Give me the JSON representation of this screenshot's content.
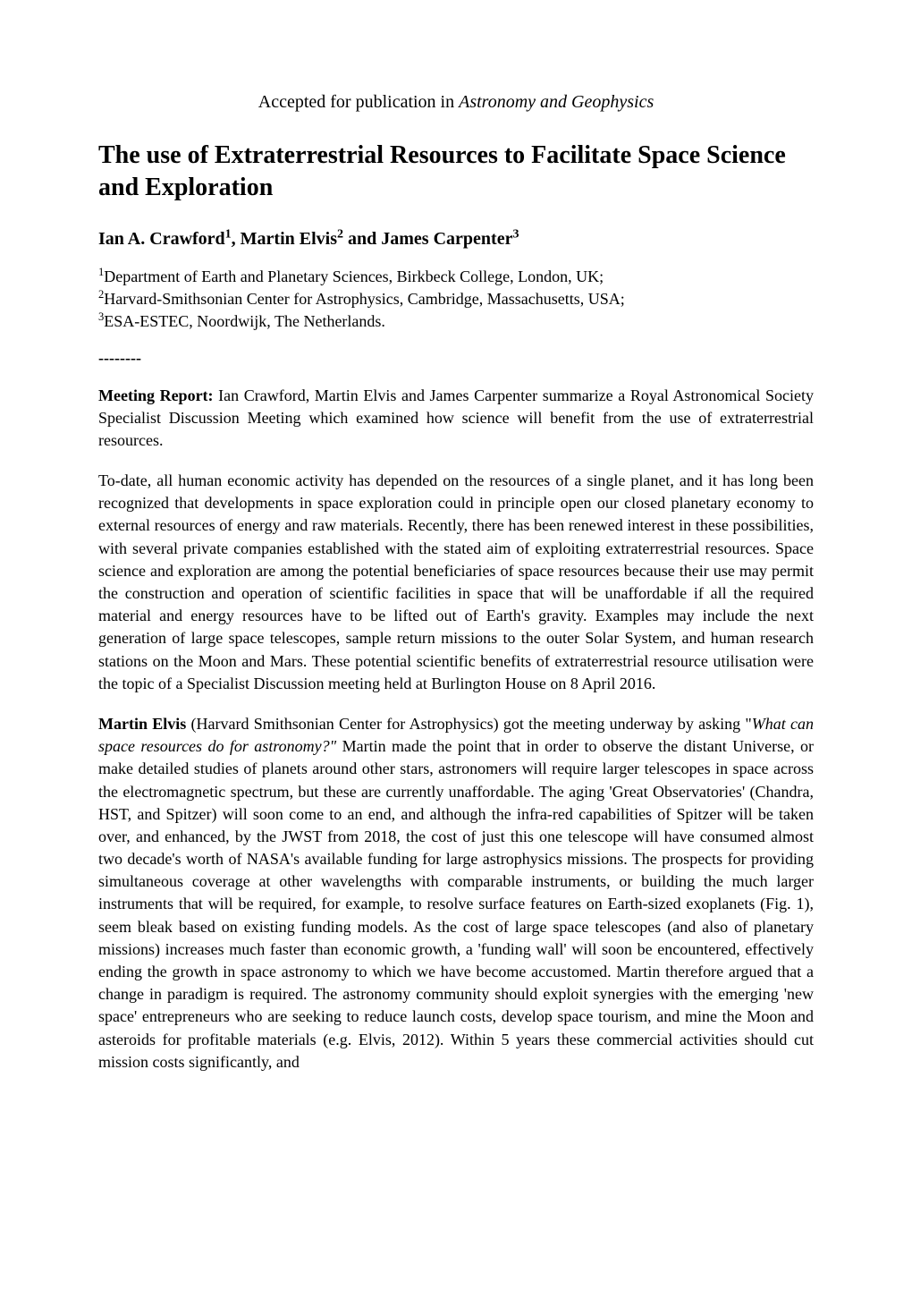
{
  "pub_note_prefix": "Accepted for publication in ",
  "pub_note_journal": "Astronomy and Geophysics",
  "title": "The use of Extraterrestrial Resources to Facilitate Space Science and Exploration",
  "authors_prefix_1": "Ian A. Crawford",
  "authors_sup_1": "1",
  "authors_sep_1": ", ",
  "authors_prefix_2": "Martin Elvis",
  "authors_sup_2": "2",
  "authors_sep_2": " and ",
  "authors_prefix_3": "James Carpenter",
  "authors_sup_3": "3",
  "aff1_sup": "1",
  "aff1_text": "Department of Earth and Planetary Sciences, Birkbeck College, London, UK;",
  "aff2_sup": "2",
  "aff2_text": "Harvard-Smithsonian Center for Astrophysics, Cambridge, Massachusetts, USA;",
  "aff3_sup": "3",
  "aff3_text": "ESA-ESTEC, Noordwijk, The Netherlands.",
  "separator": "--------",
  "report_label": "Meeting Report:",
  "report_text": " Ian Crawford, Martin Elvis and James Carpenter summarize a Royal Astronomical Society Specialist Discussion Meeting which examined how science will benefit from the use of extraterrestrial resources.",
  "intro_para": "To-date, all human economic activity has depended on the resources of a single planet, and it has long been recognized that developments in space exploration could in principle open our closed planetary economy to external resources of energy and raw materials. Recently, there has been renewed interest in these possibilities, with several private companies established with the stated aim of exploiting extraterrestrial resources. Space science and exploration are among the potential beneficiaries of space resources because their use may permit the construction and operation of scientific facilities in space that will be unaffordable if all the required material and energy resources have to be lifted out of Earth's gravity. Examples may include the next generation of large space telescopes, sample return missions to the outer Solar System, and human research stations on the Moon and Mars. These potential scientific benefits of extraterrestrial resource utilisation were the topic of a Specialist Discussion meeting held at Burlington House on 8 April 2016.",
  "elvis_name": "Martin Elvis",
  "elvis_affil": " (Harvard Smithsonian Center for Astrophysics) got the meeting underway by asking \"",
  "elvis_question": "What can space resources do for astronomy?\"",
  "elvis_rest": " Martin made the point that in order to observe the distant Universe, or make detailed studies of planets around other stars, astronomers will require larger telescopes in space across the electromagnetic spectrum, but these are currently unaffordable. The aging 'Great Observatories' (Chandra, HST, and Spitzer) will soon come to an end, and although the infra-red capabilities of Spitzer will be taken over, and enhanced, by the JWST from 2018, the cost of just this one telescope will have consumed almost two decade's worth of NASA's available funding for large astrophysics missions. The prospects for providing simultaneous coverage at other wavelengths with comparable instruments, or building the much larger instruments that will be required, for example, to resolve surface features on Earth-sized exoplanets (Fig. 1), seem bleak based on existing funding models. As the cost of large space telescopes (and also of planetary missions) increases much faster than economic growth, a 'funding wall' will soon be encountered, effectively ending the growth in space astronomy to which we have become accustomed. Martin therefore argued that a change in paradigm is required. The astronomy community should exploit synergies with the emerging 'new space' entrepreneurs who are seeking to reduce launch costs, develop space tourism, and mine the Moon and asteroids for profitable materials (e.g. Elvis, 2012). Within 5 years these commercial activities should cut mission costs significantly, and",
  "typography": {
    "body_font": "Times New Roman",
    "body_fontsize_pt": 12,
    "title_fontsize_pt": 18,
    "authors_fontsize_pt": 13,
    "background_color": "#ffffff",
    "text_color": "#000000"
  }
}
